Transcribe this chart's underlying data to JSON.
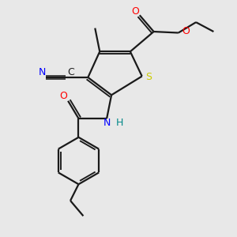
{
  "bg_color": "#e8e8e8",
  "bond_color": "#1a1a1a",
  "colors": {
    "O": "#ff0000",
    "N": "#0000ff",
    "S": "#cccc00",
    "C_text": "#1a1a1a",
    "H": "#008888"
  },
  "lw": 1.6,
  "fig_size": [
    3.0,
    3.0
  ],
  "dpi": 100
}
